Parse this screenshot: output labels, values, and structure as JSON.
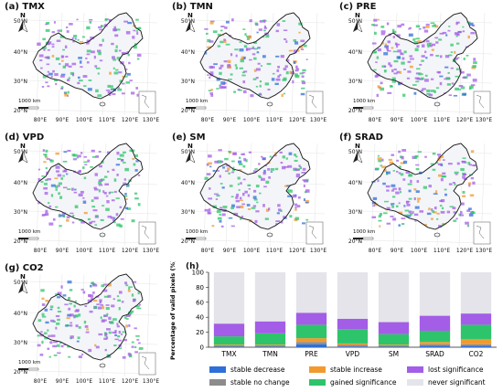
{
  "map_panels": [
    {
      "label": "(a)  TMX",
      "north": "N",
      "scale": "1000 km"
    },
    {
      "label": "(b)  TMN",
      "north": "N",
      "scale": "1000 km"
    },
    {
      "label": "(c)  PRE",
      "north": "N",
      "scale": "1000 km"
    },
    {
      "label": "(d)  VPD",
      "north": "N",
      "scale": "1000 km"
    },
    {
      "label": "(e)  SM",
      "north": "N",
      "scale": "1000 km"
    },
    {
      "label": "(f)  SRAD",
      "north": "N",
      "scale": "1000 km"
    },
    {
      "label": "(g)  CO2",
      "north": "N",
      "scale": "1000 km"
    }
  ],
  "map_axes": {
    "lat_labels": [
      "50°N",
      "40°N",
      "30°N",
      "20°N"
    ],
    "lon_labels": [
      "80°E",
      "90°E",
      "100°E",
      "110°E",
      "120°E",
      "130°E"
    ]
  },
  "colors": {
    "stable_decrease": "#2f6fd9",
    "stable_no_change": "#8c8c8c",
    "stable_increase": "#f29a2e",
    "gained_significance": "#2ec46b",
    "lost_significance": "#a35de6",
    "never_significant": "#e4e4ea",
    "land": "#f4f5f8",
    "outline": "#222222"
  },
  "chart_data": {
    "type": "bar",
    "stacked": true,
    "panel_label": "(h)",
    "categories": [
      "TMX",
      "TMN",
      "PRE",
      "VPD",
      "SM",
      "SRAD",
      "CO2"
    ],
    "ylabel": "Percentage of valid pixels (%)",
    "ylim": [
      0,
      100
    ],
    "yticks": [
      0,
      20,
      40,
      60,
      80,
      100
    ],
    "series": [
      {
        "name": "stable decrease",
        "color_key": "stable_decrease",
        "values": [
          0.5,
          0.5,
          4,
          1,
          0.5,
          2,
          2
        ]
      },
      {
        "name": "stable no change",
        "color_key": "stable_no_change",
        "values": [
          2,
          2,
          3,
          2,
          2,
          2,
          2
        ]
      },
      {
        "name": "stable increase",
        "color_key": "stable_increase",
        "values": [
          1,
          1,
          5,
          2,
          1,
          3,
          7
        ]
      },
      {
        "name": "gained significance",
        "color_key": "gained_significance",
        "values": [
          11,
          15,
          18,
          19,
          14,
          15,
          19
        ]
      },
      {
        "name": "lost significance",
        "color_key": "lost_significance",
        "values": [
          17,
          16,
          16,
          14,
          16,
          20,
          15
        ]
      },
      {
        "name": "never significant",
        "color_key": "never_significant",
        "values": [
          68.5,
          65.5,
          54,
          62,
          66.5,
          58,
          55
        ]
      }
    ],
    "legend": [
      "stable decrease",
      "stable increase",
      "lost significance",
      "stable no change",
      "gained significance",
      "never significant"
    ],
    "legend_position": "bottom"
  }
}
